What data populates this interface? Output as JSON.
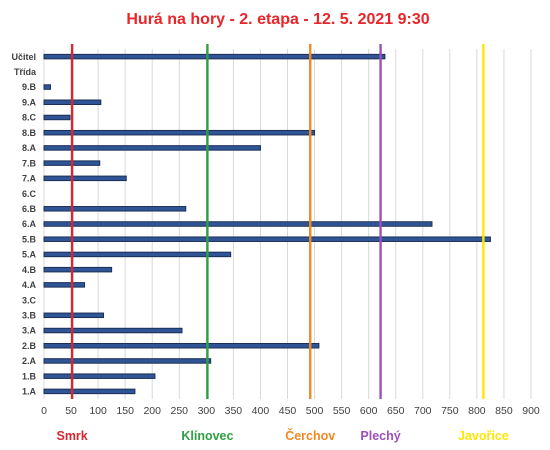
{
  "chart_data": {
    "type": "bar",
    "orientation": "horizontal",
    "title": "Hurá na hory - 2. etapa - 12. 5. 2021 9:30",
    "categories": [
      "Učitel",
      "Třída",
      "9.B",
      "9.A",
      "8.C",
      "8.B",
      "8.A",
      "7.B",
      "7.A",
      "6.C",
      "6.B",
      "6.A",
      "5.B",
      "5.A",
      "4.B",
      "4.A",
      "3.C",
      "3.B",
      "3.A",
      "2.B",
      "2.A",
      "1.B",
      "1.A"
    ],
    "values": [
      630,
      null,
      12,
      105,
      48,
      500,
      400,
      103,
      152,
      0,
      262,
      717,
      825,
      345,
      125,
      75,
      0,
      110,
      255,
      508,
      308,
      205,
      168
    ],
    "xlim": [
      0,
      900
    ],
    "xticks": [
      0,
      50,
      100,
      150,
      200,
      250,
      300,
      350,
      400,
      450,
      500,
      550,
      600,
      650,
      700,
      750,
      800,
      850,
      900
    ],
    "grid": true,
    "bar_color": "#2f5597",
    "reference_lines": [
      {
        "label": "Smrk",
        "value": 52,
        "color": "#d9262f"
      },
      {
        "label": "Klínovec",
        "value": 302,
        "color": "#2ea043"
      },
      {
        "label": "Čerchov",
        "value": 492,
        "color": "#f08a24"
      },
      {
        "label": "Plechý",
        "value": 622,
        "color": "#9f4fb8"
      },
      {
        "label": "Javořice",
        "value": 812,
        "color": "#ffe600"
      }
    ]
  }
}
